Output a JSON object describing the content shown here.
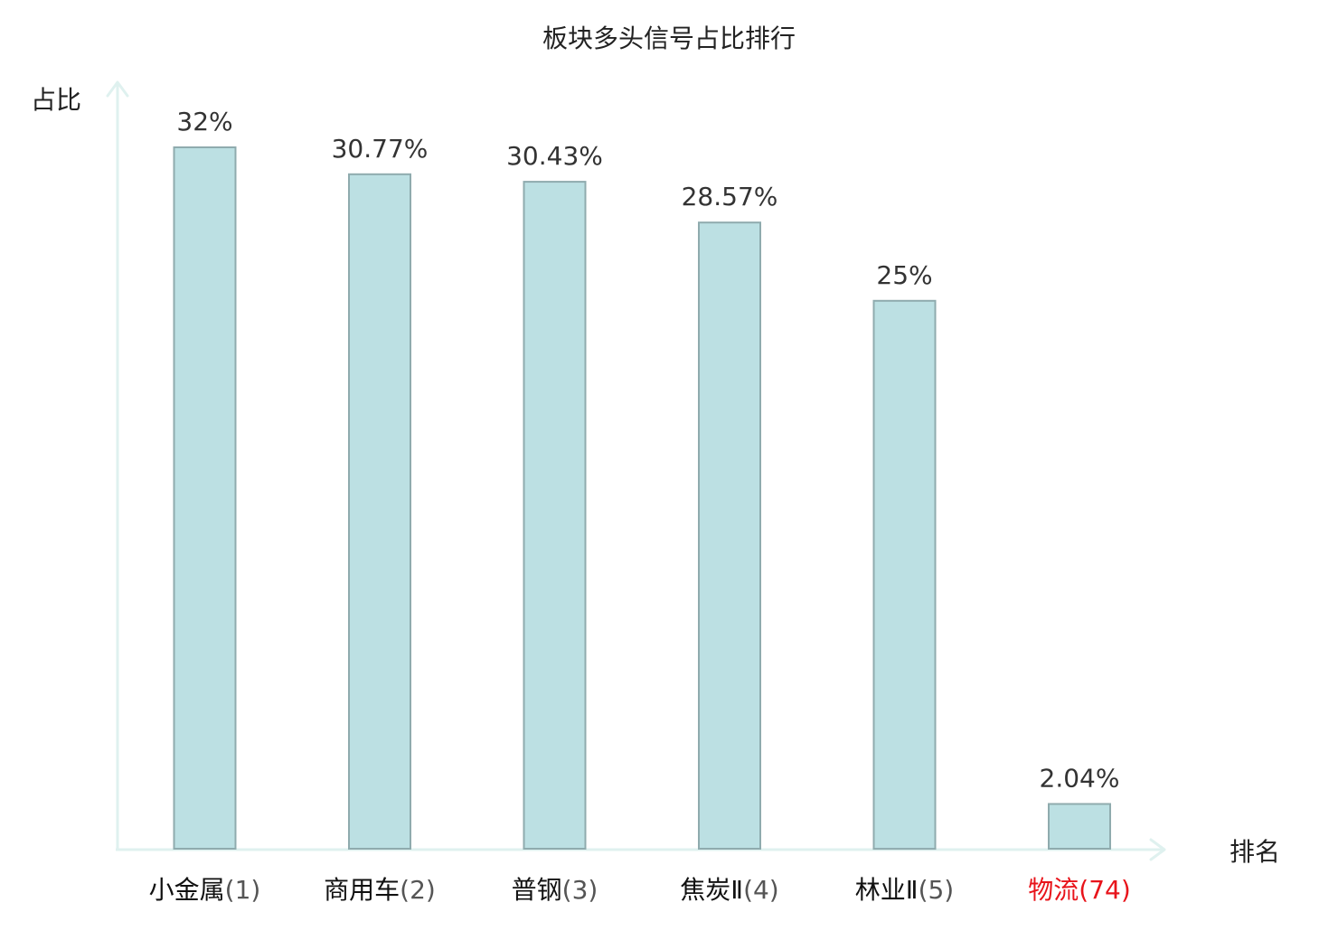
{
  "chart_data": {
    "type": "bar",
    "title": "板块多头信号占比排行",
    "xlabel": "排名",
    "ylabel": "占比",
    "categories": [
      "小金属",
      "商用车",
      "普钢",
      "焦炭Ⅱ",
      "林业Ⅱ",
      "物流"
    ],
    "ranks": [
      "(1)",
      "(2)",
      "(3)",
      "(4)",
      "(5)",
      "(74)"
    ],
    "values": [
      32,
      30.77,
      30.43,
      28.57,
      25,
      2.04
    ],
    "value_labels": [
      "32%",
      "30.77%",
      "30.43%",
      "28.57%",
      "25%",
      "2.04%"
    ],
    "highlight_index": 5,
    "ylim": [
      0,
      35
    ],
    "grid": false,
    "legend": "none"
  },
  "colors": {
    "bar_fill": "#bce0e3",
    "bar_stroke": "#8fabae",
    "axis": "#dff1ef",
    "highlight_text": "#e8141b",
    "tick_text": "#111111"
  }
}
